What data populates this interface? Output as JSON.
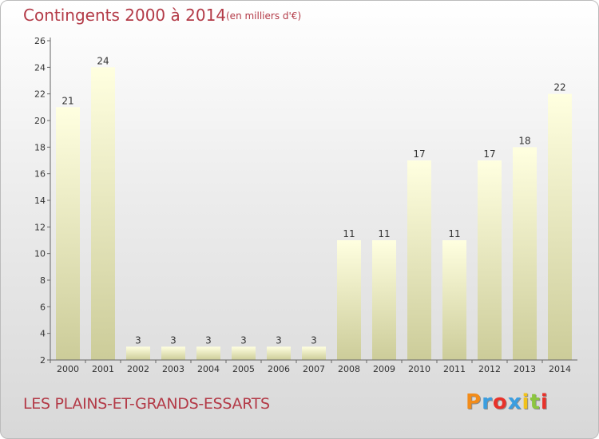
{
  "header": {
    "title": "Contingents 2000 à 2014",
    "subtitle": "(en milliers d'€)"
  },
  "footer": {
    "commune": "LES PLAINS-ET-GRANDS-ESSARTS",
    "logo_text": "Proxiti",
    "logo_colors": [
      "#f28c1a",
      "#3b9ee0",
      "#e8322a",
      "#3b9ee0",
      "#f2c21a",
      "#8cc63f",
      "#e8322a"
    ]
  },
  "chart_data": {
    "type": "bar",
    "title": "Contingents 2000 à 2014",
    "subtitle": "(en milliers d'€)",
    "categories": [
      "2000",
      "2001",
      "2002",
      "2003",
      "2004",
      "2005",
      "2006",
      "2007",
      "2008",
      "2009",
      "2010",
      "2011",
      "2012",
      "2013",
      "2014"
    ],
    "values": [
      21,
      24,
      3,
      3,
      3,
      3,
      3,
      3,
      11,
      11,
      17,
      11,
      17,
      18,
      22
    ],
    "ylim": [
      2,
      26
    ],
    "yticks": [
      2,
      4,
      6,
      8,
      10,
      12,
      14,
      16,
      18,
      20,
      22,
      24,
      26
    ],
    "xlabel": "",
    "ylabel": "",
    "grid": false,
    "legend": "none",
    "bar_color_top": "#ffffe0",
    "bar_color_bottom": "#cccc99",
    "text_color": "#b33a47"
  }
}
